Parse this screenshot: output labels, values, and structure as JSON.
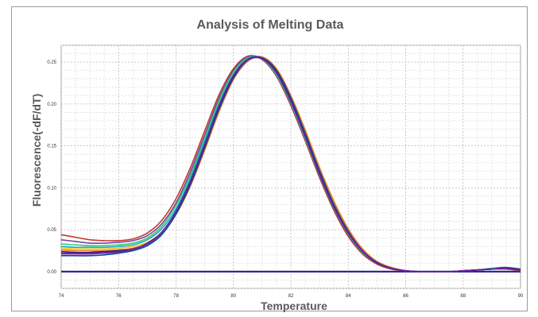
{
  "chart_data": {
    "type": "line",
    "title": "Analysis of Melting Data",
    "xlabel": "Temperature",
    "ylabel": "Fluorescence(-dF/dT)",
    "xlim": [
      74,
      90
    ],
    "ylim": [
      -0.02,
      0.27
    ],
    "x_ticks": [
      "74",
      "76",
      "78",
      "80",
      "82",
      "84",
      "86",
      "88",
      "90"
    ],
    "y_ticks": [
      "0.00",
      "0.05",
      "0.10",
      "0.15",
      "0.20",
      "0.25"
    ],
    "grid": true,
    "legend": "none",
    "baseline": {
      "y": 0.0,
      "color": "#2b2b8f"
    },
    "curve_x": [
      74.0,
      74.5,
      75.0,
      75.5,
      76.0,
      76.5,
      77.0,
      77.5,
      78.0,
      78.5,
      79.0,
      79.5,
      80.0,
      80.5,
      81.0,
      81.5,
      82.0,
      82.5,
      83.0,
      83.5,
      84.0,
      84.5,
      85.0,
      85.5,
      86.0,
      86.5,
      87.0,
      87.5,
      88.0,
      88.5,
      89.0,
      89.5,
      90.0
    ],
    "series": [
      {
        "color": "#c0392b",
        "values": [
          0.044,
          0.041,
          0.038,
          0.037,
          0.037,
          0.039,
          0.046,
          0.061,
          0.087,
          0.124,
          0.168,
          0.211,
          0.242,
          0.257,
          0.253,
          0.233,
          0.198,
          0.156,
          0.112,
          0.073,
          0.042,
          0.021,
          0.009,
          0.003,
          0.001,
          0.0,
          0.0,
          0.0,
          0.001,
          0.002,
          0.003,
          0.003,
          0.001
        ]
      },
      {
        "color": "#7b3fa0",
        "values": [
          0.038,
          0.036,
          0.034,
          0.034,
          0.035,
          0.037,
          0.043,
          0.057,
          0.082,
          0.119,
          0.163,
          0.207,
          0.24,
          0.256,
          0.254,
          0.234,
          0.2,
          0.158,
          0.114,
          0.075,
          0.044,
          0.022,
          0.01,
          0.004,
          0.001,
          0.0,
          0.0,
          0.0,
          0.001,
          0.002,
          0.003,
          0.004,
          0.002
        ]
      },
      {
        "color": "#2ecc71",
        "values": [
          0.033,
          0.032,
          0.031,
          0.031,
          0.032,
          0.034,
          0.04,
          0.054,
          0.079,
          0.115,
          0.159,
          0.204,
          0.238,
          0.255,
          0.254,
          0.235,
          0.201,
          0.159,
          0.115,
          0.076,
          0.045,
          0.023,
          0.01,
          0.004,
          0.001,
          0.0,
          0.0,
          0.0,
          0.001,
          0.002,
          0.003,
          0.004,
          0.002
        ]
      },
      {
        "color": "#16a8c8",
        "values": [
          0.03,
          0.029,
          0.029,
          0.029,
          0.03,
          0.032,
          0.038,
          0.051,
          0.075,
          0.111,
          0.155,
          0.2,
          0.235,
          0.254,
          0.255,
          0.237,
          0.203,
          0.162,
          0.117,
          0.078,
          0.046,
          0.024,
          0.011,
          0.004,
          0.001,
          0.0,
          0.0,
          0.0,
          0.001,
          0.002,
          0.004,
          0.005,
          0.002
        ]
      },
      {
        "color": "#f1c40f",
        "values": [
          0.028,
          0.027,
          0.027,
          0.027,
          0.028,
          0.03,
          0.035,
          0.047,
          0.07,
          0.104,
          0.147,
          0.193,
          0.23,
          0.252,
          0.256,
          0.241,
          0.209,
          0.168,
          0.123,
          0.083,
          0.05,
          0.027,
          0.012,
          0.005,
          0.001,
          0.0,
          0.0,
          0.0,
          0.001,
          0.002,
          0.003,
          0.004,
          0.002
        ]
      },
      {
        "color": "#e67e22",
        "values": [
          0.026,
          0.025,
          0.025,
          0.025,
          0.026,
          0.028,
          0.033,
          0.045,
          0.068,
          0.102,
          0.145,
          0.191,
          0.229,
          0.251,
          0.256,
          0.242,
          0.21,
          0.169,
          0.124,
          0.084,
          0.051,
          0.027,
          0.012,
          0.005,
          0.001,
          0.0,
          0.0,
          0.0,
          0.001,
          0.002,
          0.003,
          0.004,
          0.002
        ]
      },
      {
        "color": "#1a237e",
        "values": [
          0.024,
          0.023,
          0.023,
          0.024,
          0.025,
          0.027,
          0.033,
          0.045,
          0.069,
          0.104,
          0.148,
          0.194,
          0.231,
          0.252,
          0.255,
          0.24,
          0.207,
          0.165,
          0.12,
          0.08,
          0.048,
          0.025,
          0.011,
          0.004,
          0.001,
          0.0,
          0.0,
          0.0,
          0.001,
          0.002,
          0.003,
          0.004,
          0.002
        ]
      },
      {
        "color": "#8e44ad",
        "values": [
          0.021,
          0.021,
          0.021,
          0.022,
          0.023,
          0.026,
          0.032,
          0.045,
          0.07,
          0.106,
          0.15,
          0.196,
          0.232,
          0.252,
          0.254,
          0.238,
          0.205,
          0.163,
          0.118,
          0.079,
          0.047,
          0.025,
          0.011,
          0.004,
          0.001,
          0.0,
          0.0,
          0.0,
          0.001,
          0.002,
          0.003,
          0.004,
          0.002
        ]
      },
      {
        "color": "#0d47a1",
        "values": [
          0.019,
          0.019,
          0.019,
          0.02,
          0.022,
          0.025,
          0.031,
          0.044,
          0.069,
          0.105,
          0.149,
          0.195,
          0.232,
          0.253,
          0.255,
          0.239,
          0.206,
          0.164,
          0.119,
          0.079,
          0.047,
          0.024,
          0.011,
          0.004,
          0.001,
          0.0,
          0.0,
          0.0,
          0.001,
          0.002,
          0.003,
          0.005,
          0.003
        ]
      },
      {
        "color": "#6a1b9a",
        "values": [
          0.022,
          0.022,
          0.022,
          0.023,
          0.024,
          0.027,
          0.034,
          0.047,
          0.072,
          0.108,
          0.152,
          0.198,
          0.234,
          0.253,
          0.254,
          0.237,
          0.203,
          0.161,
          0.116,
          0.077,
          0.046,
          0.024,
          0.01,
          0.004,
          0.001,
          0.0,
          0.0,
          0.0,
          0.001,
          0.002,
          0.003,
          0.004,
          0.002
        ]
      }
    ]
  }
}
